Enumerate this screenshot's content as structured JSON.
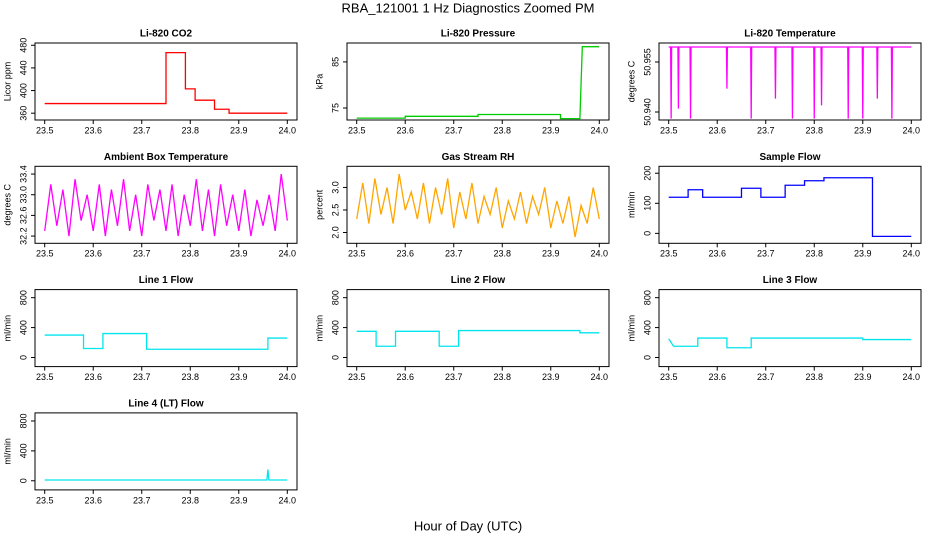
{
  "title": "RBA_121001  1 Hz Diagnostics Zoomed PM",
  "x_label": "Hour of Day (UTC)",
  "chart_data": [
    {
      "type": "line",
      "title": "Li-820 CO2",
      "y_label": "Licor ppm",
      "color": "#ff0000",
      "x": [
        23.5,
        23.75,
        23.75,
        23.79,
        23.79,
        23.81,
        23.81,
        23.85,
        23.85,
        23.88,
        23.88,
        24.0
      ],
      "values": [
        377,
        377,
        467,
        467,
        403,
        403,
        383,
        383,
        367,
        367,
        360,
        360
      ],
      "xlim": [
        23.48,
        24.02
      ],
      "xticks": [
        23.5,
        23.6,
        23.7,
        23.8,
        23.9,
        {
          "value": 24,
          "label": "24.0"
        }
      ],
      "ylim": [
        348,
        484
      ],
      "yticks": [
        360,
        400,
        440,
        480
      ]
    },
    {
      "type": "line",
      "title": "Li-820 Pressure",
      "y_label": "kPa",
      "color": "#00cc00",
      "x": [
        23.5,
        23.6,
        23.6,
        23.75,
        23.75,
        23.92,
        23.92,
        23.96,
        23.965,
        24.0
      ],
      "values": [
        72.8,
        72.8,
        73.2,
        73.2,
        73.6,
        73.6,
        72.7,
        72.7,
        88.3,
        88.3
      ],
      "xlim": [
        23.48,
        24.02
      ],
      "xticks": [
        23.5,
        23.6,
        23.7,
        23.8,
        23.9,
        {
          "value": 24,
          "label": "24.0"
        }
      ],
      "ylim": [
        72.4,
        89.1
      ],
      "yticks": [
        75,
        85
      ]
    },
    {
      "type": "line",
      "title": "Li-820 Temperature",
      "y_label": "degrees C",
      "color": "#ff00ff",
      "x": [
        23.5,
        23.504,
        23.505,
        23.506,
        23.519,
        23.52,
        23.521,
        23.544,
        23.545,
        23.546,
        23.619,
        23.62,
        23.621,
        23.669,
        23.67,
        23.671,
        23.719,
        23.72,
        23.721,
        23.754,
        23.755,
        23.756,
        23.799,
        23.8,
        23.801,
        23.814,
        23.815,
        23.816,
        23.869,
        23.87,
        23.871,
        23.899,
        23.9,
        23.901,
        23.929,
        23.93,
        23.931,
        23.959,
        23.96,
        23.961,
        24.0
      ],
      "values": [
        50.9595,
        50.9595,
        50.938,
        50.9595,
        50.9595,
        50.941,
        50.9595,
        50.9595,
        50.938,
        50.9595,
        50.9595,
        50.947,
        50.9595,
        50.9595,
        50.938,
        50.9595,
        50.9595,
        50.944,
        50.9595,
        50.9595,
        50.938,
        50.9595,
        50.9595,
        50.938,
        50.9595,
        50.9595,
        50.942,
        50.9595,
        50.9595,
        50.938,
        50.9595,
        50.9595,
        50.938,
        50.9595,
        50.9595,
        50.944,
        50.9595,
        50.9595,
        50.938,
        50.9595,
        50.9595
      ],
      "xlim": [
        23.48,
        24.02
      ],
      "xticks": [
        23.5,
        23.6,
        23.7,
        23.8,
        23.9,
        {
          "value": 24,
          "label": "24.0"
        }
      ],
      "ylim": [
        50.9376,
        50.9607
      ],
      "yticks": [
        {
          "value": 50.94,
          "label": "50.940"
        },
        50.955
      ]
    },
    {
      "type": "line",
      "title": "Ambient Box Temperature",
      "y_label": "degrees C",
      "color": "#ff00ff",
      "x": [
        23.5,
        23.5125,
        23.525,
        23.5375,
        23.55,
        23.5625,
        23.575,
        23.5875,
        23.6,
        23.6125,
        23.625,
        23.6375,
        23.65,
        23.6625,
        23.675,
        23.6875,
        23.7,
        23.7125,
        23.725,
        23.7375,
        23.75,
        23.7625,
        23.775,
        23.7875,
        23.8,
        23.8125,
        23.825,
        23.8375,
        23.85,
        23.8625,
        23.875,
        23.8875,
        23.9,
        23.9125,
        23.925,
        23.9375,
        23.95,
        23.9625,
        23.975,
        23.9875,
        24.0
      ],
      "values": [
        32.3,
        33.2,
        32.4,
        33.1,
        32.2,
        33.3,
        32.5,
        33.0,
        32.3,
        33.2,
        32.2,
        33.1,
        32.4,
        33.3,
        32.3,
        33.0,
        32.2,
        33.2,
        32.5,
        33.1,
        32.3,
        33.2,
        32.2,
        33.0,
        32.4,
        33.3,
        32.3,
        33.1,
        32.2,
        33.2,
        32.4,
        33.0,
        32.3,
        33.1,
        32.2,
        32.9,
        32.4,
        33.0,
        32.3,
        33.4,
        32.5
      ],
      "xlim": [
        23.48,
        24.02
      ],
      "xticks": [
        23.5,
        23.6,
        23.7,
        23.8,
        23.9,
        {
          "value": 24,
          "label": "24.0"
        }
      ],
      "ylim": [
        32.06,
        33.55
      ],
      "yticks": [
        32.2,
        32.6,
        {
          "value": 33,
          "label": "33.0"
        },
        33.4
      ]
    },
    {
      "type": "line",
      "title": "Gas Stream RH",
      "y_label": "percent",
      "color": "#ffa500",
      "x": [
        23.5,
        23.5125,
        23.525,
        23.5375,
        23.55,
        23.5625,
        23.575,
        23.5875,
        23.6,
        23.6125,
        23.625,
        23.6375,
        23.65,
        23.6625,
        23.675,
        23.6875,
        23.7,
        23.7125,
        23.725,
        23.7375,
        23.75,
        23.7625,
        23.775,
        23.7875,
        23.8,
        23.8125,
        23.825,
        23.8375,
        23.85,
        23.8625,
        23.875,
        23.8875,
        23.9,
        23.9125,
        23.925,
        23.9375,
        23.95,
        23.9625,
        23.975,
        23.9875,
        24.0
      ],
      "values": [
        2.3,
        3.1,
        2.2,
        3.2,
        2.4,
        3.0,
        2.2,
        3.3,
        2.5,
        2.9,
        2.3,
        3.1,
        2.2,
        3.0,
        2.4,
        3.2,
        2.1,
        2.9,
        2.3,
        3.1,
        2.2,
        2.8,
        2.4,
        3.0,
        2.1,
        2.7,
        2.3,
        2.9,
        2.2,
        2.8,
        2.4,
        3.0,
        2.1,
        2.7,
        2.2,
        2.8,
        1.9,
        2.6,
        2.2,
        3.0,
        2.3
      ],
      "xlim": [
        23.48,
        24.02
      ],
      "xticks": [
        23.5,
        23.6,
        23.7,
        23.8,
        23.9,
        {
          "value": 24,
          "label": "24.0"
        }
      ],
      "ylim": [
        1.76,
        3.47
      ],
      "yticks": [
        {
          "value": 2,
          "label": "2.0"
        },
        2.5,
        {
          "value": 3,
          "label": "3.0"
        }
      ]
    },
    {
      "type": "line",
      "title": "Sample Flow",
      "y_label": "ml/min",
      "color": "#0000ff",
      "x": [
        23.5,
        23.54,
        23.54,
        23.57,
        23.57,
        23.65,
        23.65,
        23.69,
        23.69,
        23.74,
        23.74,
        23.78,
        23.78,
        23.82,
        23.82,
        23.92,
        23.92,
        24.0
      ],
      "values": [
        120,
        120,
        145,
        145,
        120,
        120,
        150,
        150,
        120,
        120,
        160,
        160,
        175,
        175,
        185,
        185,
        -10,
        -10
      ],
      "xlim": [
        23.48,
        24.02
      ],
      "xticks": [
        23.5,
        23.6,
        23.7,
        23.8,
        23.9,
        {
          "value": 24,
          "label": "24.0"
        }
      ],
      "ylim": [
        -33,
        223
      ],
      "yticks": [
        0,
        100,
        200
      ]
    },
    {
      "type": "line",
      "title": "Line 1 Flow",
      "y_label": "ml/min",
      "color": "#00e5ee",
      "x": [
        23.5,
        23.58,
        23.58,
        23.62,
        23.62,
        23.71,
        23.71,
        23.96,
        23.96,
        24.0
      ],
      "values": [
        300,
        300,
        120,
        120,
        320,
        320,
        110,
        110,
        260,
        260
      ],
      "xlim": [
        23.48,
        24.02
      ],
      "xticks": [
        23.5,
        23.6,
        23.7,
        23.8,
        23.9,
        {
          "value": 24,
          "label": "24.0"
        }
      ],
      "ylim": [
        -122,
        908
      ],
      "yticks": [
        0,
        400,
        800
      ]
    },
    {
      "type": "line",
      "title": "Line 2 Flow",
      "y_label": "ml/min",
      "color": "#00e5ee",
      "x": [
        23.5,
        23.54,
        23.54,
        23.58,
        23.58,
        23.67,
        23.67,
        23.71,
        23.71,
        23.96,
        23.96,
        24.0
      ],
      "values": [
        350,
        350,
        150,
        150,
        350,
        350,
        150,
        150,
        360,
        360,
        330,
        330
      ],
      "xlim": [
        23.48,
        24.02
      ],
      "xticks": [
        23.5,
        23.6,
        23.7,
        23.8,
        23.9,
        {
          "value": 24,
          "label": "24.0"
        }
      ],
      "ylim": [
        -122,
        908
      ],
      "yticks": [
        0,
        400,
        800
      ]
    },
    {
      "type": "line",
      "title": "Line 3 Flow",
      "y_label": "ml/min",
      "color": "#00e5ee",
      "x": [
        23.5,
        23.51,
        23.51,
        23.56,
        23.56,
        23.62,
        23.62,
        23.67,
        23.67,
        23.9,
        23.9,
        24.0
      ],
      "values": [
        250,
        150,
        150,
        150,
        260,
        260,
        130,
        130,
        260,
        260,
        240,
        240
      ],
      "xlim": [
        23.48,
        24.02
      ],
      "xticks": [
        23.5,
        23.6,
        23.7,
        23.8,
        23.9,
        {
          "value": 24,
          "label": "24.0"
        }
      ],
      "ylim": [
        -122,
        908
      ],
      "yticks": [
        0,
        400,
        800
      ]
    },
    {
      "type": "line",
      "title": "Line 4 (LT) Flow",
      "y_label": "ml/min",
      "color": "#00e5ee",
      "x": [
        23.5,
        23.958,
        23.96,
        23.962,
        24.0
      ],
      "values": [
        10,
        10,
        150,
        10,
        10
      ],
      "xlim": [
        23.48,
        24.02
      ],
      "xticks": [
        23.5,
        23.6,
        23.7,
        23.8,
        23.9,
        {
          "value": 24,
          "label": "24.0"
        }
      ],
      "ylim": [
        -122,
        908
      ],
      "yticks": [
        0,
        400,
        800
      ]
    }
  ]
}
